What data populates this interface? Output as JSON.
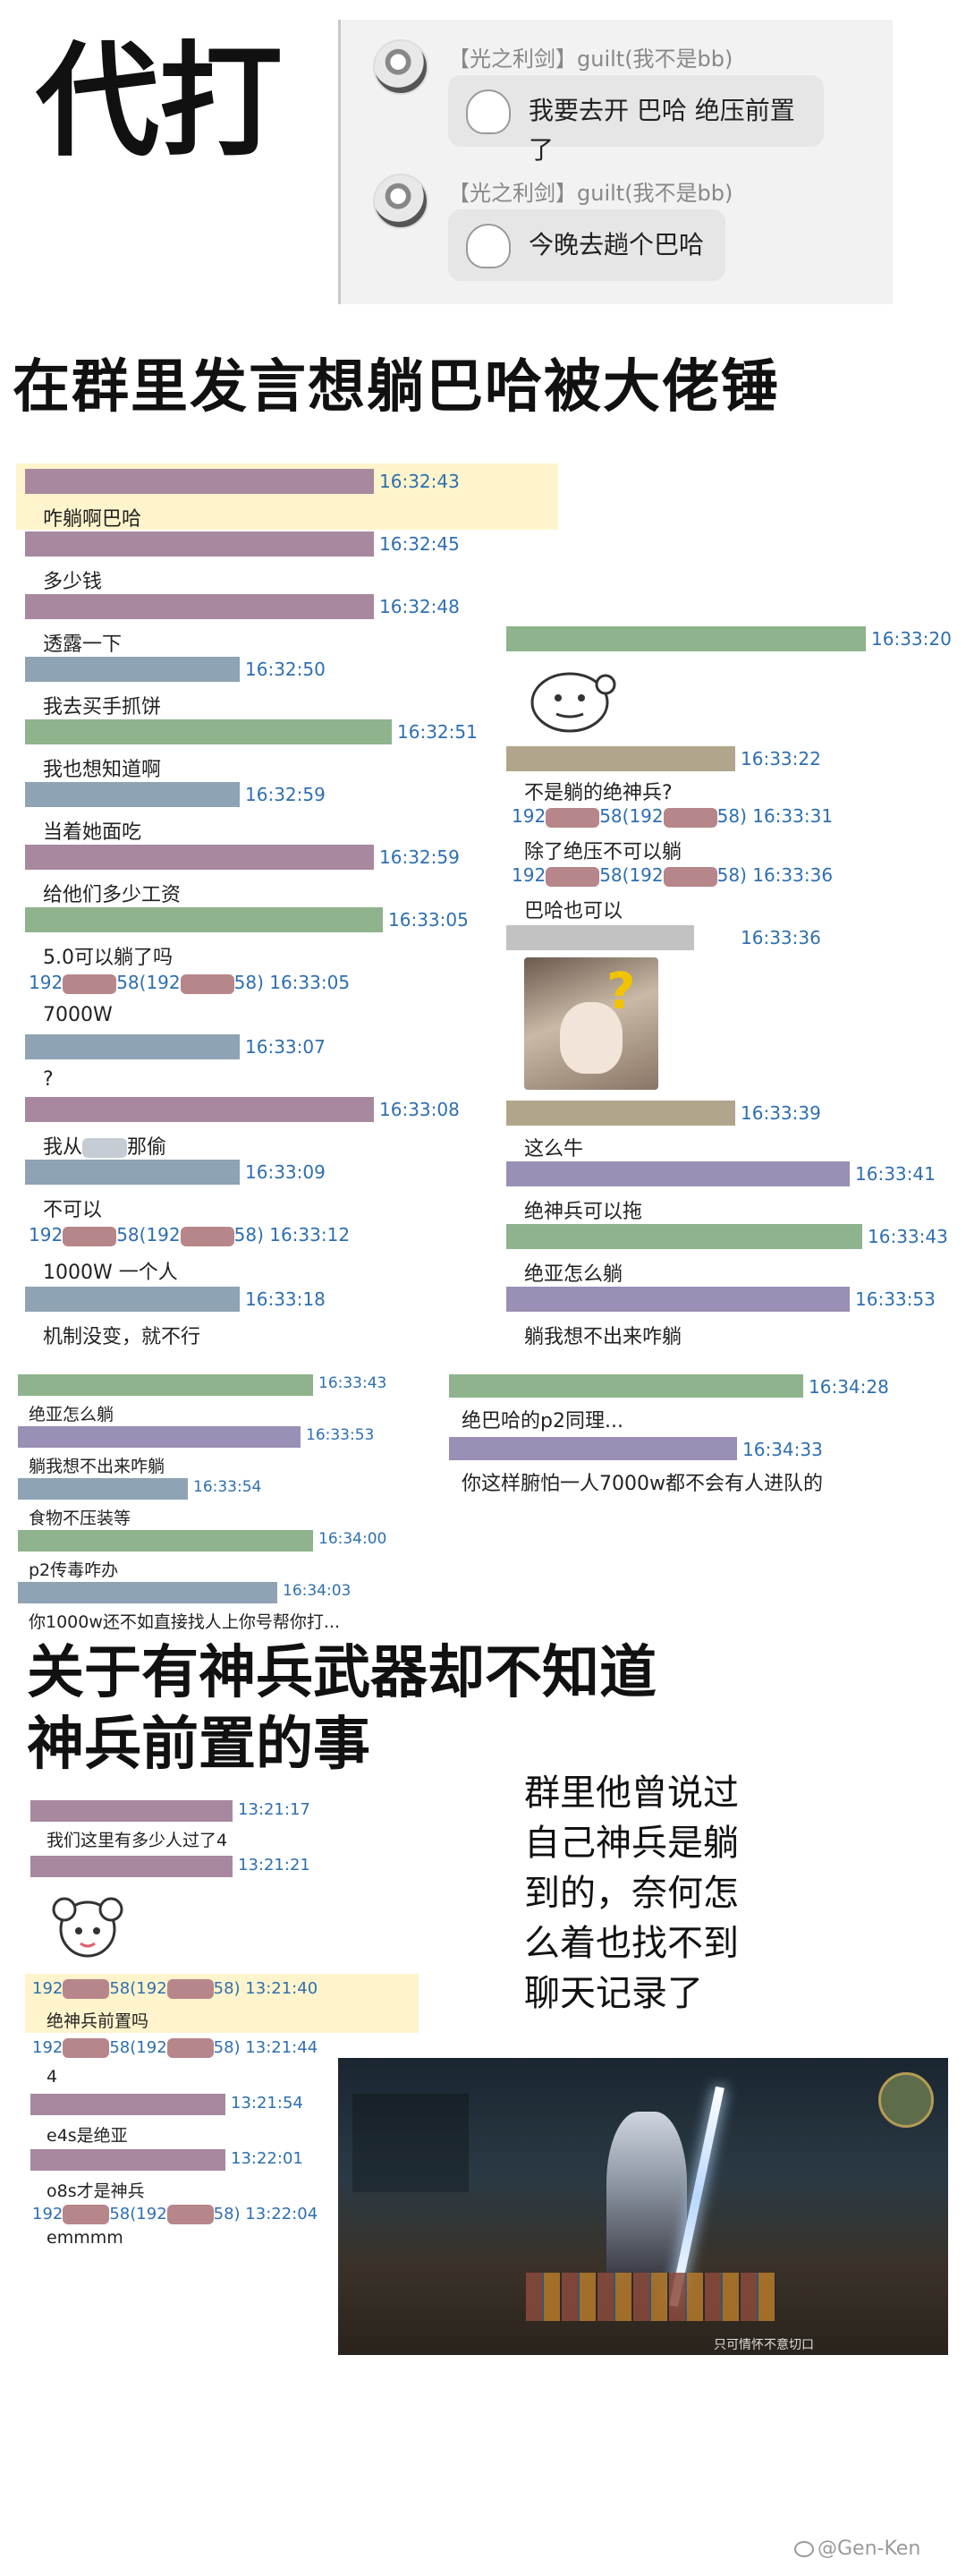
{
  "title_daida": "代打",
  "top_chat": {
    "messages": [
      {
        "sender": "【光之利剑】guilt(我不是bb)",
        "text": "我要去开 巴哈 绝压前置了"
      },
      {
        "sender": "【光之利剑】guilt(我不是bb)",
        "text": "今晚去趟个巴哈"
      }
    ]
  },
  "headline1": "在群里发言想躺巴哈被大佬锤",
  "chat_left": [
    {
      "time": "16:32:43",
      "text": "咋躺啊巴哈"
    },
    {
      "time": "16:32:45",
      "text": "多少钱"
    },
    {
      "time": "16:32:48",
      "text": "透露一下"
    },
    {
      "time": "16:32:50",
      "text": "我去买手抓饼"
    },
    {
      "time": "16:32:51",
      "text": "我也想知道啊"
    },
    {
      "time": "16:32:59",
      "text": "当着她面吃"
    },
    {
      "time": "16:32:59",
      "text": "给他们多少工资"
    },
    {
      "time": "16:33:05",
      "text": "5.0可以躺了吗"
    },
    {
      "id_a": "192",
      "id_b": "58(192",
      "id_c": "58) 16:33:05",
      "text": "7000W"
    },
    {
      "time": "16:33:07",
      "text": "?"
    },
    {
      "time": "16:33:08",
      "text": "我从",
      "text2": "那偷"
    },
    {
      "time": "16:33:09",
      "text": "不可以"
    },
    {
      "id_a": "192",
      "id_b": "58(192",
      "id_c": "58) 16:33:12",
      "text": "1000W  一个人"
    },
    {
      "time": "16:33:18",
      "text": "机制没变，就不行"
    }
  ],
  "chat_right": [
    {
      "time": "16:33:20",
      "text": ""
    },
    {
      "time": "16:33:22",
      "text": "不是躺的绝神兵?"
    },
    {
      "id_a": "192",
      "id_b": "58(192",
      "id_c": "58) 16:33:31",
      "text": "除了绝压不可以躺"
    },
    {
      "id_a": "192",
      "id_b": "58(192",
      "id_c": "58) 16:33:36",
      "text": "巴哈也可以"
    },
    {
      "time": "16:33:36",
      "text": ""
    },
    {
      "time": "16:33:39",
      "text": "这么牛"
    },
    {
      "time": "16:33:41",
      "text": "绝神兵可以拖"
    },
    {
      "time": "16:33:43",
      "text": "绝亚怎么躺"
    },
    {
      "time": "16:33:53",
      "text": "躺我想不出来咋躺"
    }
  ],
  "chat_mid_left": [
    {
      "time": "16:33:43",
      "text": "绝亚怎么躺"
    },
    {
      "time": "16:33:53",
      "text": "躺我想不出来咋躺"
    },
    {
      "time": "16:33:54",
      "text": "食物不压装等"
    },
    {
      "time": "16:34:00",
      "text": "p2传毒咋办"
    },
    {
      "time": "16:34:03",
      "text": "你1000w还不如直接找人上你号帮你打..."
    }
  ],
  "chat_mid_right": [
    {
      "time": "16:34:28",
      "text": "绝巴哈的p2同理..."
    },
    {
      "time": "16:34:33",
      "text": "你这样腑怕一人7000w都不会有人进队的"
    }
  ],
  "headline2_line1": "关于有神兵武器却不知道",
  "headline2_line2": "神兵前置的事",
  "chat_bottom": [
    {
      "time": "13:21:17",
      "text": "我们这里有多少人过了4"
    },
    {
      "time": "13:21:21",
      "text": ""
    },
    {
      "id_a": "192",
      "id_b": "58(192",
      "id_c": "58) 13:21:40",
      "text": "绝神兵前置吗"
    },
    {
      "id_a": "192",
      "id_b": "58(192",
      "id_c": "58) 13:21:44",
      "text": "4"
    },
    {
      "time": "13:21:54",
      "text": "e4s是绝亚"
    },
    {
      "time": "13:22:01",
      "text": "o8s才是神兵"
    },
    {
      "id_a": "192",
      "id_b": "58(192",
      "id_c": "58) 13:22:04",
      "text": "emmmm"
    }
  ],
  "side_note": [
    "群里他曾说过",
    "自己神兵是躺",
    "到的，奈何怎",
    "么着也找不到",
    "聊天记录了"
  ],
  "game_hud_text": "只可情怀不意切口",
  "watermark": "@Gen-Ken",
  "colors": {
    "purple": "#a7889f",
    "green": "#8fb38d",
    "blue": "#8ea3b4",
    "time": "#2e6fb0"
  }
}
